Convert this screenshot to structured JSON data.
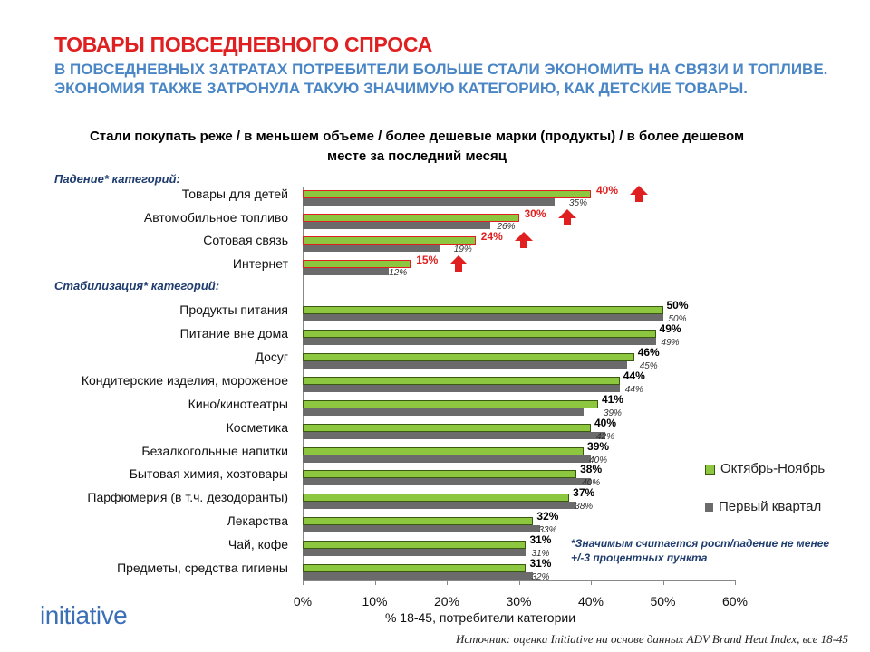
{
  "title": "ТОВАРЫ ПОВСЕДНЕВНОГО СПРОСА",
  "subtitle": "В ПОВСЕДНЕВНЫХ ЗАТРАТАХ ПОТРЕБИТЕЛИ БОЛЬШЕ СТАЛИ ЭКОНОМИТЬ НА СВЯЗИ И ТОПЛИВЕ. ЭКОНОМИЯ ТАКЖЕ ЗАТРОНУЛА ТАКУЮ ЗНАЧИМУЮ КАТЕГОРИЮ, КАК ДЕТСКИЕ ТОВАРЫ.",
  "logo": "initiative",
  "note": "*Значимым считается рост/падение не менее +/-3 процентных пункта",
  "source": "Источник: оценка Initiative на основе данных ADV Brand Heat Index, все 18-45",
  "colors": {
    "title": "#e02020",
    "subtitle": "#4a86c5",
    "current": "#8dc63f",
    "previous": "#6b6b6b",
    "arrow": "#e02020"
  },
  "chart_data": {
    "type": "bar",
    "orientation": "horizontal",
    "title": "Стали покупать реже / в меньшем объеме / более дешевые марки (продукты) / в более дешевом месте за последний месяц",
    "xlabel": "% 18-45, потребители категории",
    "xlim": [
      0,
      60
    ],
    "xticks": [
      "0%",
      "10%",
      "20%",
      "30%",
      "40%",
      "50%",
      "60%"
    ],
    "legend": {
      "position": "right",
      "entries": [
        "Октябрь-Ноябрь",
        "Первый квартал"
      ]
    },
    "series": [
      {
        "name": "Октябрь-Ноябрь",
        "color": "#8dc63f"
      },
      {
        "name": "Первый квартал",
        "color": "#6b6b6b"
      }
    ],
    "groups": [
      {
        "label": "Падение* категорий:",
        "categories": [
          "Товары для детей",
          "Автомобильное топливо",
          "Сотовая связь",
          "Интернет"
        ],
        "current": [
          40,
          30,
          24,
          15
        ],
        "previous": [
          35,
          26,
          19,
          12
        ]
      },
      {
        "label": "Стабилизация* категорий:",
        "categories": [
          "Продукты питания",
          "Питание вне дома",
          "Досуг",
          "Кондитерские изделия, мороженое",
          "Кино/кинотеатры",
          "Косметика",
          "Безалкогольные напитки",
          "Бытовая химия, хозтовары",
          "Парфюмерия (в т.ч. дезодоранты)",
          "Лекарства",
          "Чай, кофе",
          "Предметы, средства гигиены"
        ],
        "current": [
          50,
          49,
          46,
          44,
          41,
          40,
          39,
          38,
          37,
          32,
          31,
          31
        ],
        "previous": [
          50,
          49,
          45,
          44,
          39,
          42,
          40,
          40,
          38,
          33,
          31,
          32
        ]
      }
    ]
  }
}
